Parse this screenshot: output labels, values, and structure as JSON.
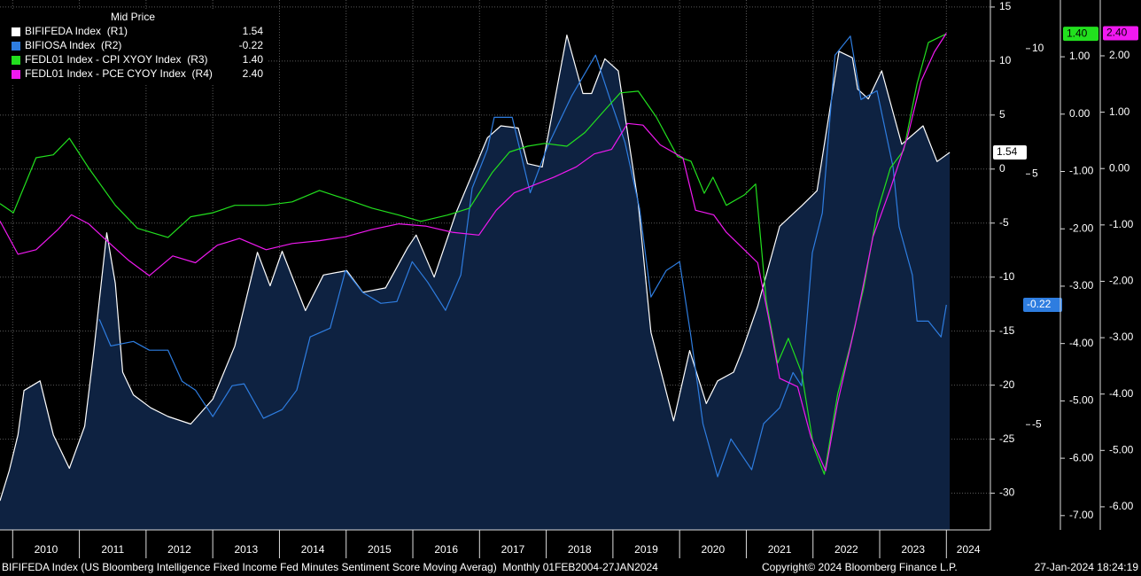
{
  "chart_data": {
    "type": "line",
    "legend_title": "Mid Price",
    "legend": "upper left",
    "grid": true,
    "area_color": "#0e2241",
    "xlim": [
      2009.81,
      2024.66
    ],
    "xticks": [
      {
        "value": 2010.5,
        "label": "2010"
      },
      {
        "value": 2011.5,
        "label": "2011"
      },
      {
        "value": 2012.5,
        "label": "2012"
      },
      {
        "value": 2013.5,
        "label": "2013"
      },
      {
        "value": 2014.5,
        "label": "2014"
      },
      {
        "value": 2015.5,
        "label": "2015"
      },
      {
        "value": 2016.5,
        "label": "2016"
      },
      {
        "value": 2017.5,
        "label": "2017"
      },
      {
        "value": 2018.5,
        "label": "2018"
      },
      {
        "value": 2019.5,
        "label": "2019"
      },
      {
        "value": 2020.5,
        "label": "2020"
      },
      {
        "value": 2021.5,
        "label": "2021"
      },
      {
        "value": 2022.5,
        "label": "2022"
      },
      {
        "value": 2023.5,
        "label": "2023"
      },
      {
        "value": 2024.5,
        "label": "2024"
      }
    ],
    "ylim": [
      -33.4,
      15.65
    ],
    "yticks": [
      15,
      10,
      5,
      0,
      -5,
      -10,
      -15,
      -20,
      -25,
      -30
    ],
    "y2lim": [
      -9.2,
      11.94
    ],
    "y2ticks": [
      10,
      5,
      -5
    ],
    "y3lim": [
      -7.25,
      1.99
    ],
    "y3ticks": [
      {
        "value": 1,
        "label": "1.00"
      },
      {
        "value": 0,
        "label": "0.00"
      },
      {
        "value": -1,
        "label": "-1.00"
      },
      {
        "value": -2,
        "label": "-2.00"
      },
      {
        "value": -3,
        "label": "-3.00"
      },
      {
        "value": -4,
        "label": "-4.00"
      },
      {
        "value": -5,
        "label": "-5.00"
      },
      {
        "value": -6,
        "label": "-6.00"
      },
      {
        "value": -7,
        "label": "-7.00"
      }
    ],
    "y4lim": [
      -6.41,
      2.99
    ],
    "y4ticks": [
      {
        "value": 2,
        "label": "2.00"
      },
      {
        "value": 1,
        "label": "1.00"
      },
      {
        "value": 0,
        "label": "0.00"
      },
      {
        "value": -1,
        "label": "-1.00"
      },
      {
        "value": -2,
        "label": "-2.00"
      },
      {
        "value": -3,
        "label": "-3.00"
      },
      {
        "value": -4,
        "label": "-4.00"
      },
      {
        "value": -5,
        "label": "-5.00"
      },
      {
        "value": -6,
        "label": "-6.00"
      }
    ],
    "series": [
      {
        "name": "BIFIFEDA Index  (R1)",
        "color": "#ffffff",
        "axis": "y",
        "last_label": "1.54",
        "area": true,
        "x": [
          2009.81,
          2009.95,
          2010.08,
          2010.17,
          2010.41,
          2010.61,
          2010.85,
          2011.08,
          2011.21,
          2011.41,
          2011.54,
          2011.65,
          2011.81,
          2012.07,
          2012.33,
          2012.67,
          2013.0,
          2013.33,
          2013.67,
          2013.86,
          2014.04,
          2014.39,
          2014.66,
          2015.01,
          2015.25,
          2015.59,
          2015.92,
          2016.05,
          2016.32,
          2016.65,
          2017.12,
          2017.32,
          2017.58,
          2017.72,
          2017.94,
          2018.31,
          2018.55,
          2018.68,
          2018.88,
          2019.08,
          2019.38,
          2019.57,
          2019.91,
          2020.15,
          2020.4,
          2020.57,
          2020.81,
          2020.94,
          2021.17,
          2021.5,
          2021.83,
          2022.06,
          2022.39,
          2022.59,
          2022.67,
          2022.83,
          2023.03,
          2023.33,
          2023.65,
          2023.86,
          2024.05
        ],
        "values": [
          -30.7,
          -27.9,
          -24.6,
          -20.5,
          -19.6,
          -24.6,
          -27.7,
          -23.8,
          -17.2,
          -5.9,
          -10.6,
          -18.8,
          -20.9,
          -22.1,
          -22.9,
          -23.6,
          -21.3,
          -16.4,
          -7.7,
          -10.8,
          -7.6,
          -13.1,
          -9.8,
          -9.4,
          -11.4,
          -11.0,
          -7.3,
          -6.1,
          -10.0,
          -4.0,
          2.9,
          4.0,
          3.8,
          0.5,
          0.2,
          12.4,
          7.0,
          7.0,
          10.2,
          9.1,
          -3.2,
          -15.1,
          -23.3,
          -16.8,
          -21.7,
          -19.6,
          -18.8,
          -16.8,
          -12.7,
          -5.3,
          -3.4,
          -2.0,
          10.9,
          10.3,
          7.4,
          6.5,
          9.1,
          2.3,
          4.0,
          0.7,
          1.54
        ]
      },
      {
        "name": "BIFIOSA Index  (R2)",
        "color": "#2e7de0",
        "axis": "y2",
        "last_label": "-0.22",
        "x": [
          2011.3,
          2011.47,
          2011.81,
          2012.05,
          2012.33,
          2012.54,
          2012.74,
          2013.0,
          2013.29,
          2013.47,
          2013.76,
          2014.04,
          2014.26,
          2014.46,
          2014.76,
          2014.99,
          2015.25,
          2015.52,
          2015.76,
          2015.99,
          2016.22,
          2016.49,
          2016.72,
          2016.89,
          2017.12,
          2017.22,
          2017.49,
          2017.76,
          2018.02,
          2018.38,
          2018.74,
          2018.95,
          2019.18,
          2019.4,
          2019.57,
          2019.8,
          2020.0,
          2020.17,
          2020.35,
          2020.57,
          2020.77,
          2021.08,
          2021.26,
          2021.5,
          2021.7,
          2021.83,
          2021.99,
          2022.14,
          2022.33,
          2022.56,
          2022.72,
          2022.96,
          2023.2,
          2023.29,
          2023.49,
          2023.56,
          2023.73,
          2023.92,
          2024.0
        ],
        "values": [
          -0.8,
          -1.86,
          -1.68,
          -2.03,
          -2.03,
          -3.27,
          -3.62,
          -4.68,
          -3.45,
          -3.37,
          -4.75,
          -4.4,
          -3.62,
          -1.5,
          -1.15,
          1.15,
          0.27,
          -0.16,
          -0.09,
          1.5,
          0.69,
          -0.44,
          0.97,
          4.43,
          5.99,
          7.26,
          7.26,
          4.25,
          6.1,
          8.1,
          9.74,
          8.04,
          6.27,
          3.62,
          0.09,
          1.15,
          1.5,
          -1.5,
          -4.96,
          -7.08,
          -5.57,
          -6.8,
          -4.96,
          -4.33,
          -2.92,
          -3.45,
          1.86,
          3.45,
          9.74,
          10.5,
          7.97,
          8.32,
          5.28,
          2.9,
          0.97,
          -0.87,
          -0.87,
          -1.5,
          -0.22
        ]
      },
      {
        "name": "FEDL01 Index - CPI XYOY Index  (R3)",
        "color": "#22e01e",
        "axis": "y3",
        "last_label": "1.40",
        "x": [
          2009.81,
          2010.01,
          2010.35,
          2010.61,
          2010.85,
          2011.14,
          2011.54,
          2011.87,
          2012.33,
          2012.67,
          2013.0,
          2013.33,
          2013.8,
          2014.19,
          2014.6,
          2014.99,
          2015.39,
          2015.79,
          2016.12,
          2016.52,
          2016.85,
          2017.19,
          2017.45,
          2017.72,
          2017.98,
          2018.31,
          2018.58,
          2018.84,
          2019.11,
          2019.38,
          2019.65,
          2019.97,
          2020.17,
          2020.37,
          2020.5,
          2020.7,
          2020.97,
          2021.14,
          2021.3,
          2021.47,
          2021.63,
          2021.83,
          2022.01,
          2022.17,
          2022.37,
          2022.56,
          2022.76,
          2022.96,
          2023.16,
          2023.36,
          2023.56,
          2023.73,
          2024.0
        ],
        "values": [
          -1.56,
          -1.72,
          -0.76,
          -0.71,
          -0.42,
          -0.94,
          -1.59,
          -1.99,
          -2.15,
          -1.79,
          -1.72,
          -1.59,
          -1.59,
          -1.53,
          -1.33,
          -1.48,
          -1.64,
          -1.76,
          -1.87,
          -1.76,
          -1.64,
          -1.02,
          -0.66,
          -0.56,
          -0.51,
          -0.56,
          -0.32,
          0.02,
          0.37,
          0.4,
          -0.05,
          -0.74,
          -0.82,
          -1.38,
          -1.1,
          -1.59,
          -1.41,
          -1.22,
          -3.26,
          -4.34,
          -3.91,
          -4.51,
          -5.81,
          -6.28,
          -4.88,
          -4.03,
          -3.03,
          -1.72,
          -0.94,
          -0.63,
          0.53,
          1.25,
          1.4
        ]
      },
      {
        "name": "FEDL01 Index - PCE CYOY Index  (R4)",
        "color": "#f019f0",
        "axis": "y4",
        "last_label": "2.40",
        "x": [
          2009.81,
          2010.08,
          2010.35,
          2010.68,
          2010.88,
          2011.14,
          2011.41,
          2011.74,
          2012.05,
          2012.4,
          2012.74,
          2013.07,
          2013.4,
          2013.8,
          2014.19,
          2014.6,
          2014.99,
          2015.39,
          2015.79,
          2016.19,
          2016.59,
          2016.99,
          2017.25,
          2017.52,
          2017.78,
          2018.12,
          2018.45,
          2018.72,
          2018.98,
          2019.22,
          2019.45,
          2019.71,
          2020.05,
          2020.24,
          2020.51,
          2020.7,
          2020.97,
          2021.17,
          2021.34,
          2021.5,
          2021.77,
          2021.97,
          2022.19,
          2022.37,
          2022.63,
          2022.9,
          2023.16,
          2023.42,
          2023.62,
          2023.82,
          2024.0
        ],
        "values": [
          -0.93,
          -1.52,
          -1.44,
          -1.08,
          -0.82,
          -0.98,
          -1.28,
          -1.63,
          -1.9,
          -1.55,
          -1.67,
          -1.36,
          -1.24,
          -1.44,
          -1.33,
          -1.28,
          -1.21,
          -1.08,
          -0.98,
          -1.02,
          -1.13,
          -1.18,
          -0.74,
          -0.43,
          -0.31,
          -0.15,
          0.03,
          0.26,
          0.34,
          0.8,
          0.77,
          0.42,
          0.19,
          -0.74,
          -0.82,
          -1.13,
          -1.44,
          -1.67,
          -2.68,
          -3.72,
          -3.87,
          -4.77,
          -5.36,
          -4.15,
          -2.8,
          -1.21,
          -0.36,
          0.57,
          1.55,
          2.07,
          2.4
        ]
      }
    ],
    "footer_left": "BIFIFEDA Index (US Bloomberg Intelligence Fixed Income Fed Minutes Sentiment Score Moving Averag)  Monthly 01FEB2004-27JAN2024",
    "footer_center": "Copyright© 2024 Bloomberg Finance L.P.",
    "footer_right": "27-Jan-2024 18:24:19"
  }
}
